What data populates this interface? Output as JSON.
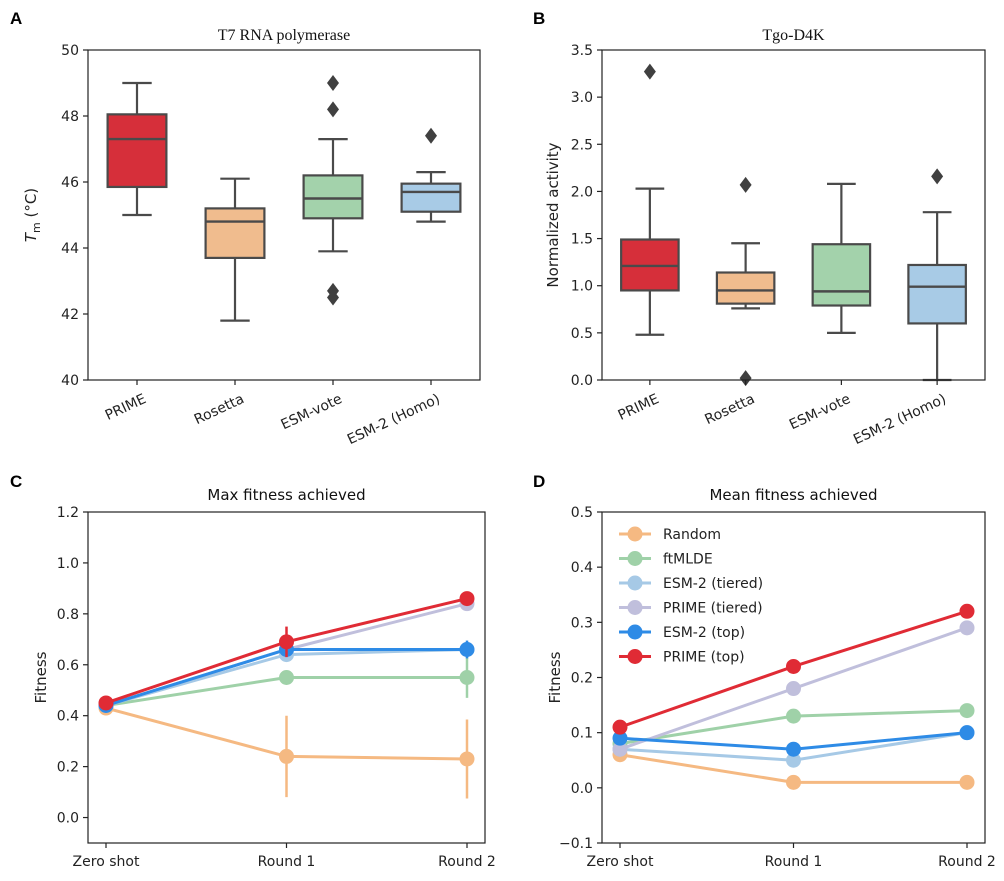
{
  "chart_data": [
    {
      "panel": "A",
      "type": "box",
      "title": "T7 RNA polymerase",
      "ylabel_main": "T",
      "ylabel_sub": "m",
      "ylabel_unit": " (°C)",
      "ylim": [
        40,
        50
      ],
      "yticks": [
        40,
        42,
        44,
        46,
        48,
        50
      ],
      "categories": [
        "PRIME",
        "Rosetta",
        "ESM-vote",
        "ESM-2 (Homo)"
      ],
      "colors": [
        "#d62f3a",
        "#f0bc8e",
        "#a3d2ab",
        "#a8cbe6"
      ],
      "boxes": [
        {
          "whislo": 45.0,
          "q1": 45.85,
          "med": 47.3,
          "q3": 48.05,
          "whishi": 49.0,
          "fliers": []
        },
        {
          "whislo": 41.8,
          "q1": 43.7,
          "med": 44.8,
          "q3": 45.2,
          "whishi": 46.1,
          "fliers": []
        },
        {
          "whislo": 43.9,
          "q1": 44.9,
          "med": 45.5,
          "q3": 46.2,
          "whishi": 47.3,
          "fliers": [
            49.0,
            48.2,
            42.7,
            42.5
          ]
        },
        {
          "whislo": 44.8,
          "q1": 45.1,
          "med": 45.7,
          "q3": 45.95,
          "whishi": 46.3,
          "fliers": [
            47.4
          ]
        }
      ]
    },
    {
      "panel": "B",
      "type": "box",
      "title": "Tgo-D4K",
      "ylabel": "Normalized activity",
      "ylim": [
        0,
        3.5
      ],
      "yticks": [
        "0.0",
        "0.5",
        "1.0",
        "1.5",
        "2.0",
        "2.5",
        "3.0",
        "3.5"
      ],
      "categories": [
        "PRIME",
        "Rosetta",
        "ESM-vote",
        "ESM-2 (Homo)"
      ],
      "colors": [
        "#d62f3a",
        "#f0bc8e",
        "#a3d2ab",
        "#a8cbe6"
      ],
      "boxes": [
        {
          "whislo": 0.48,
          "q1": 0.95,
          "med": 1.21,
          "q3": 1.49,
          "whishi": 2.03,
          "fliers": [
            3.27
          ]
        },
        {
          "whislo": 0.76,
          "q1": 0.81,
          "med": 0.95,
          "q3": 1.14,
          "whishi": 1.45,
          "fliers": [
            2.07,
            0.02
          ]
        },
        {
          "whislo": 0.5,
          "q1": 0.79,
          "med": 0.94,
          "q3": 1.44,
          "whishi": 2.08,
          "fliers": []
        },
        {
          "whislo": 0.0,
          "q1": 0.6,
          "med": 0.99,
          "q3": 1.22,
          "whishi": 1.78,
          "fliers": [
            2.16
          ]
        }
      ]
    },
    {
      "panel": "C",
      "type": "line",
      "title": "Max fitness achieved",
      "ylabel": "Fitness",
      "ylim": [
        -0.1,
        1.2
      ],
      "yticks": [
        "0.0",
        "0.2",
        "0.4",
        "0.6",
        "0.8",
        "1.0",
        "1.2"
      ],
      "categories": [
        "Zero shot",
        "Round 1",
        "Round 2"
      ],
      "series": [
        {
          "name": "Random",
          "color": "#f5b982",
          "values": [
            0.43,
            0.24,
            0.23
          ],
          "err": [
            0.02,
            0.16,
            0.155
          ]
        },
        {
          "name": "ftMLDE",
          "color": "#9fd1a8",
          "values": [
            0.44,
            0.55,
            0.55
          ],
          "err": [
            0,
            0,
            0.08
          ]
        },
        {
          "name": "ESM-2 (tiered)",
          "color": "#a6c9e6",
          "values": [
            0.44,
            0.64,
            0.66
          ],
          "err": [
            0,
            0,
            0
          ]
        },
        {
          "name": "PRIME (tiered)",
          "color": "#c0bfdc",
          "values": [
            0.44,
            0.66,
            0.84
          ],
          "err": [
            0,
            0,
            0
          ]
        },
        {
          "name": "ESM-2 (top)",
          "color": "#2e8be6",
          "values": [
            0.44,
            0.66,
            0.66
          ],
          "err": [
            0,
            0.02,
            0.035
          ]
        },
        {
          "name": "PRIME (top)",
          "color": "#e02b35",
          "values": [
            0.45,
            0.69,
            0.86
          ],
          "err": [
            0,
            0.06,
            0
          ]
        }
      ]
    },
    {
      "panel": "D",
      "type": "line",
      "title": "Mean fitness achieved",
      "ylabel": "Fitness",
      "ylim": [
        -0.1,
        0.5
      ],
      "yticks": [
        "−0.1",
        "0.0",
        "0.1",
        "0.2",
        "0.3",
        "0.4",
        "0.5"
      ],
      "categories": [
        "Zero shot",
        "Round 1",
        "Round 2"
      ],
      "legend_loc": "upper-left",
      "series": [
        {
          "name": "Random",
          "color": "#f5b982",
          "values": [
            0.06,
            0.01,
            0.01
          ]
        },
        {
          "name": "ftMLDE",
          "color": "#9fd1a8",
          "values": [
            0.08,
            0.13,
            0.14
          ]
        },
        {
          "name": "ESM-2 (tiered)",
          "color": "#a6c9e6",
          "values": [
            0.07,
            0.05,
            0.1
          ]
        },
        {
          "name": "PRIME (tiered)",
          "color": "#c0bfdc",
          "values": [
            0.07,
            0.18,
            0.29
          ]
        },
        {
          "name": "ESM-2 (top)",
          "color": "#2e8be6",
          "values": [
            0.09,
            0.07,
            0.1
          ]
        },
        {
          "name": "PRIME (top)",
          "color": "#e02b35",
          "values": [
            0.11,
            0.22,
            0.32
          ]
        }
      ]
    }
  ]
}
